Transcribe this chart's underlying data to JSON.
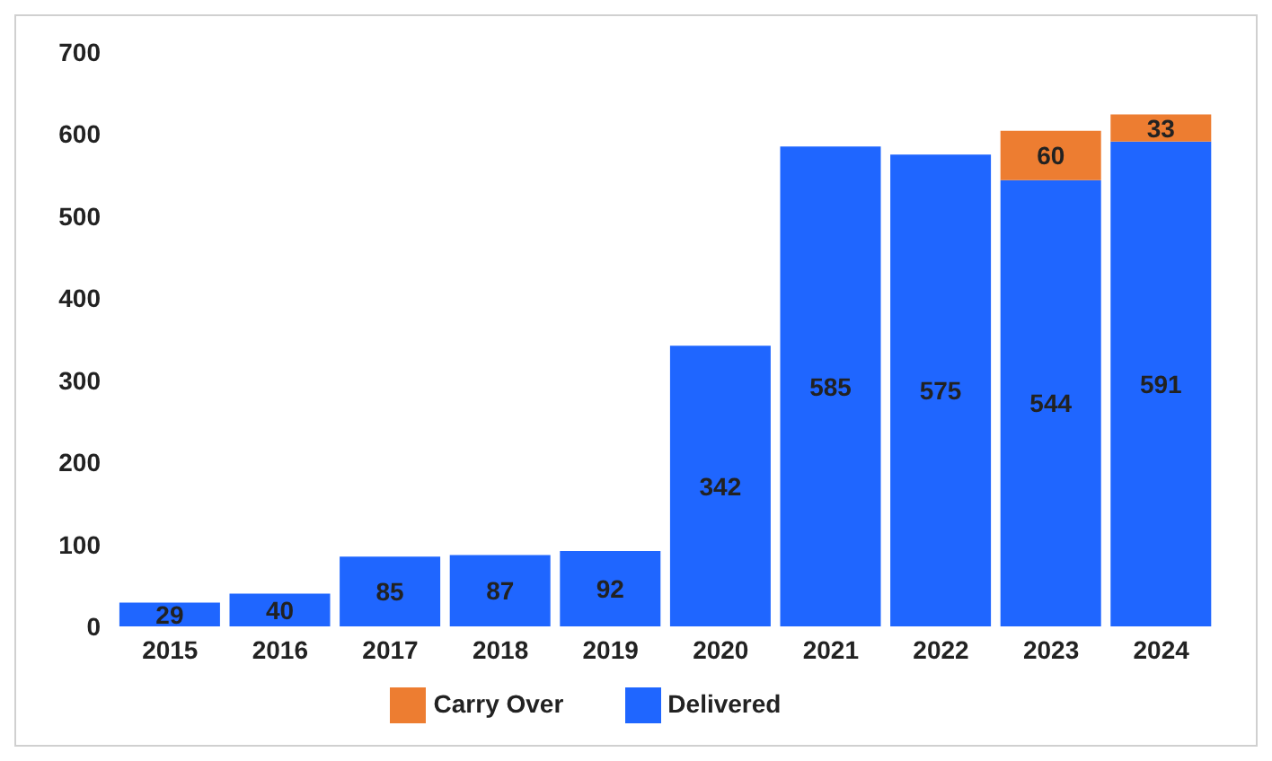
{
  "chart_data": {
    "type": "bar",
    "stacked": true,
    "categories": [
      "2015",
      "2016",
      "2017",
      "2018",
      "2019",
      "2020",
      "2021",
      "2022",
      "2023",
      "2024"
    ],
    "series": [
      {
        "name": "Delivered",
        "color": "#1f66ff",
        "values": [
          29,
          40,
          85,
          87,
          92,
          342,
          585,
          575,
          544,
          591
        ]
      },
      {
        "name": "Carry Over",
        "color": "#ed7d31",
        "values": [
          null,
          null,
          null,
          null,
          null,
          null,
          null,
          null,
          60,
          33
        ]
      }
    ],
    "ylim": [
      0,
      700
    ],
    "yticks": [
      0,
      100,
      200,
      300,
      400,
      500,
      600,
      700
    ],
    "data_labels": true,
    "legend": "bottom",
    "grid": false
  }
}
